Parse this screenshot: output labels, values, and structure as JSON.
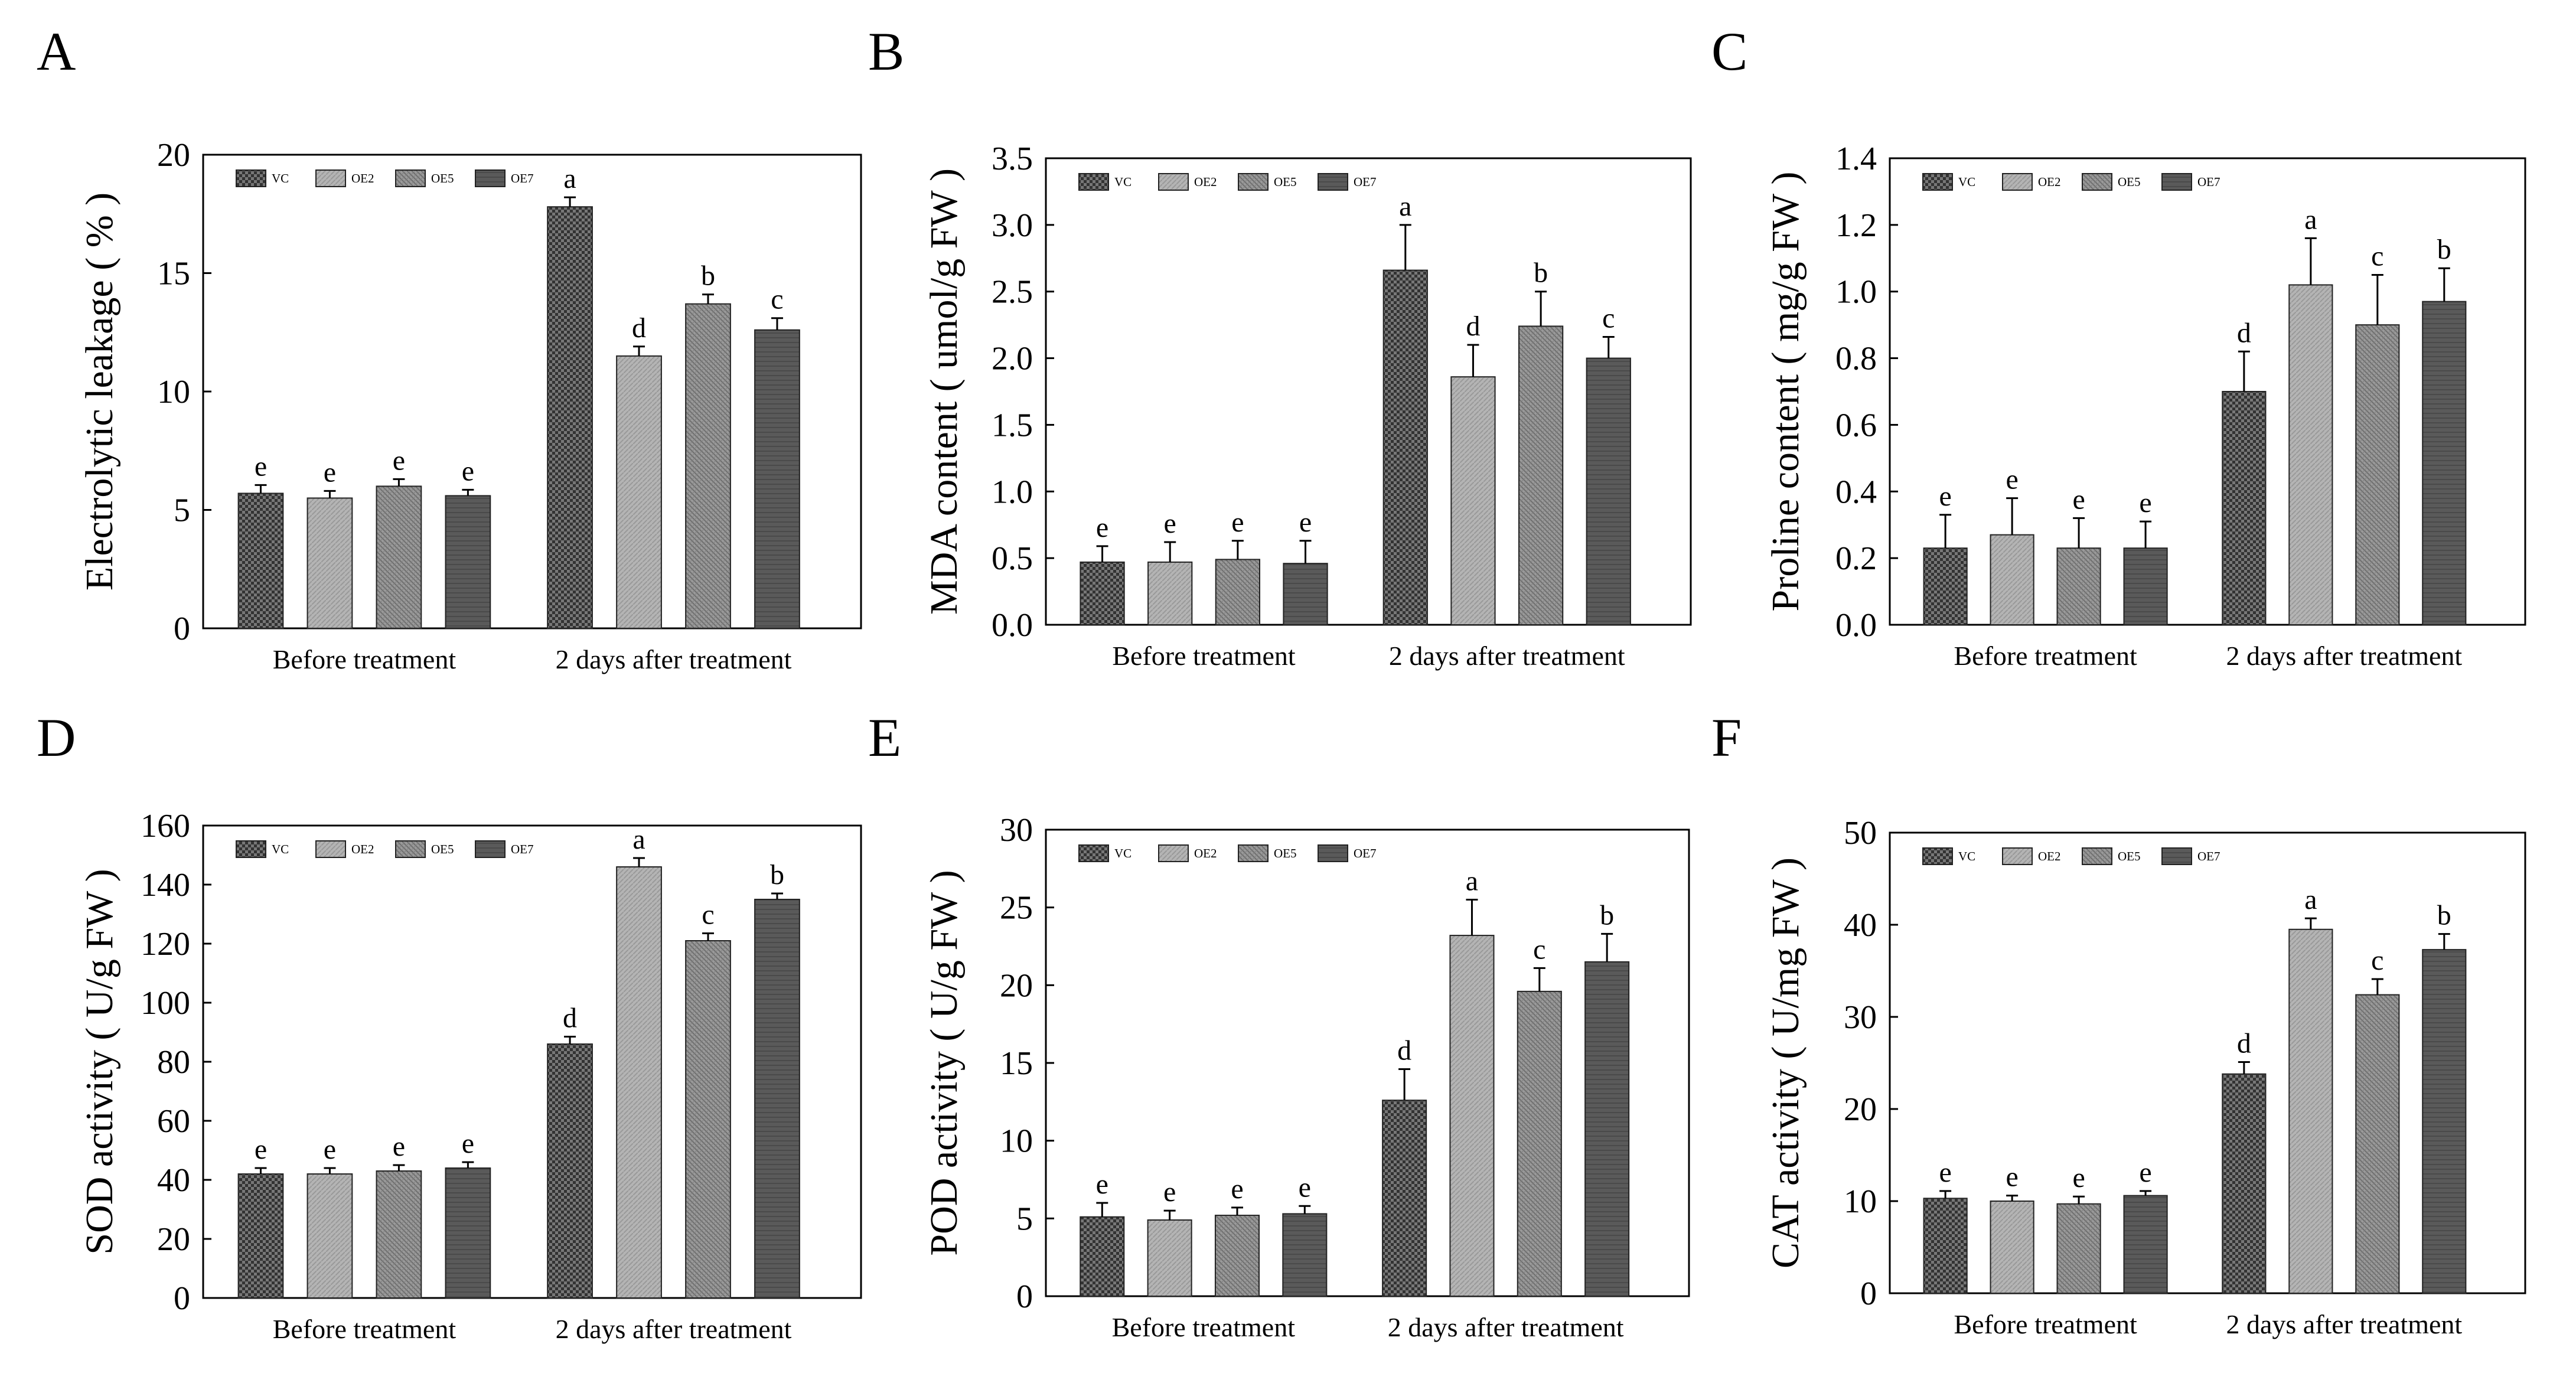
{
  "chart_data": [
    {
      "type": "bar",
      "panel": "A",
      "ylabel": "Electrolytic leakage ( % )",
      "ylim": [
        0,
        20
      ],
      "yticks": [
        0,
        5,
        10,
        15,
        20
      ],
      "categories": [
        "Before treatment",
        "2 days after treatment"
      ],
      "legend": [
        "VC",
        "OE2",
        "OE5",
        "OE7"
      ],
      "legend_position": "top-left",
      "series": [
        {
          "name": "VC",
          "values": [
            5.7,
            17.8
          ],
          "errors": [
            0.35,
            0.4
          ],
          "letters": [
            "e",
            "a"
          ]
        },
        {
          "name": "OE2",
          "values": [
            5.5,
            11.5
          ],
          "errors": [
            0.3,
            0.4
          ],
          "letters": [
            "e",
            "d"
          ]
        },
        {
          "name": "OE5",
          "values": [
            6.0,
            13.7
          ],
          "errors": [
            0.3,
            0.4
          ],
          "letters": [
            "e",
            "b"
          ]
        },
        {
          "name": "OE7",
          "values": [
            5.6,
            12.6
          ],
          "errors": [
            0.25,
            0.5
          ],
          "letters": [
            "e",
            "c"
          ]
        }
      ]
    },
    {
      "type": "bar",
      "panel": "B",
      "ylabel": "MDA content ( umol/g FW )",
      "ylim": [
        0,
        3.5
      ],
      "yticks": [
        "0.0",
        "0.5",
        "1.0",
        "1.5",
        "2.0",
        "2.5",
        "3.0",
        "3.5"
      ],
      "categories": [
        "Before treatment",
        "2 days after treatment"
      ],
      "legend": [
        "VC",
        "OE2",
        "OE5",
        "OE7"
      ],
      "legend_position": "top-left",
      "series": [
        {
          "name": "VC",
          "values": [
            0.47,
            2.66
          ],
          "errors": [
            0.12,
            0.34
          ],
          "letters": [
            "e",
            "a"
          ]
        },
        {
          "name": "OE2",
          "values": [
            0.47,
            1.86
          ],
          "errors": [
            0.15,
            0.24
          ],
          "letters": [
            "e",
            "d"
          ]
        },
        {
          "name": "OE5",
          "values": [
            0.49,
            2.24
          ],
          "errors": [
            0.14,
            0.26
          ],
          "letters": [
            "e",
            "b"
          ]
        },
        {
          "name": "OE7",
          "values": [
            0.46,
            2.0
          ],
          "errors": [
            0.17,
            0.16
          ],
          "letters": [
            "e",
            "c"
          ]
        }
      ]
    },
    {
      "type": "bar",
      "panel": "C",
      "ylabel": "Proline content ( mg/g FW )",
      "ylim": [
        0,
        1.4
      ],
      "yticks": [
        "0.0",
        "0.2",
        "0.4",
        "0.6",
        "0.8",
        "1.0",
        "1.2",
        "1.4"
      ],
      "categories": [
        "Before treatment",
        "2 days after treatment"
      ],
      "legend": [
        "VC",
        "OE2",
        "OE5",
        "OE7"
      ],
      "legend_position": "top-left",
      "series": [
        {
          "name": "VC",
          "values": [
            0.23,
            0.7
          ],
          "errors": [
            0.1,
            0.12
          ],
          "letters": [
            "e",
            "d"
          ]
        },
        {
          "name": "OE2",
          "values": [
            0.27,
            1.02
          ],
          "errors": [
            0.11,
            0.14
          ],
          "letters": [
            "e",
            "a"
          ]
        },
        {
          "name": "OE5",
          "values": [
            0.23,
            0.9
          ],
          "errors": [
            0.09,
            0.15
          ],
          "letters": [
            "e",
            "c"
          ]
        },
        {
          "name": "OE7",
          "values": [
            0.23,
            0.97
          ],
          "errors": [
            0.08,
            0.1
          ],
          "letters": [
            "e",
            "b"
          ]
        }
      ]
    },
    {
      "type": "bar",
      "panel": "D",
      "ylabel": "SOD activity ( U/g FW )",
      "ylim": [
        0,
        160
      ],
      "yticks": [
        0,
        20,
        40,
        60,
        80,
        100,
        120,
        140,
        160
      ],
      "categories": [
        "Before treatment",
        "2 days after treatment"
      ],
      "legend": [
        "VC",
        "OE2",
        "OE5",
        "OE7"
      ],
      "legend_position": "top-left",
      "series": [
        {
          "name": "VC",
          "values": [
            42,
            86
          ],
          "errors": [
            2,
            2.5
          ],
          "letters": [
            "e",
            "d"
          ]
        },
        {
          "name": "OE2",
          "values": [
            42,
            146
          ],
          "errors": [
            2,
            3
          ],
          "letters": [
            "e",
            "a"
          ]
        },
        {
          "name": "OE5",
          "values": [
            43,
            121
          ],
          "errors": [
            2,
            2.5
          ],
          "letters": [
            "e",
            "c"
          ]
        },
        {
          "name": "OE7",
          "values": [
            44,
            135
          ],
          "errors": [
            2,
            2
          ],
          "letters": [
            "e",
            "b"
          ]
        }
      ]
    },
    {
      "type": "bar",
      "panel": "E",
      "ylabel": "POD activity ( U/g FW )",
      "ylim": [
        0,
        30
      ],
      "yticks": [
        0,
        5,
        10,
        15,
        20,
        25,
        30
      ],
      "categories": [
        "Before treatment",
        "2 days after treatment"
      ],
      "legend": [
        "VC",
        "OE2",
        "OE5",
        "OE7"
      ],
      "legend_position": "top-left",
      "series": [
        {
          "name": "VC",
          "values": [
            5.1,
            12.6
          ],
          "errors": [
            0.9,
            2.0
          ],
          "letters": [
            "e",
            "d"
          ]
        },
        {
          "name": "OE2",
          "values": [
            4.9,
            23.2
          ],
          "errors": [
            0.6,
            2.3
          ],
          "letters": [
            "e",
            "a"
          ]
        },
        {
          "name": "OE5",
          "values": [
            5.2,
            19.6
          ],
          "errors": [
            0.5,
            1.5
          ],
          "letters": [
            "e",
            "c"
          ]
        },
        {
          "name": "OE7",
          "values": [
            5.3,
            21.5
          ],
          "errors": [
            0.5,
            1.8
          ],
          "letters": [
            "e",
            "b"
          ]
        }
      ]
    },
    {
      "type": "bar",
      "panel": "F",
      "ylabel": "CAT activity ( U/mg FW )",
      "ylim": [
        0,
        50
      ],
      "yticks": [
        0,
        10,
        20,
        30,
        40,
        50
      ],
      "categories": [
        "Before treatment",
        "2 days after treatment"
      ],
      "legend": [
        "VC",
        "OE2",
        "OE5",
        "OE7"
      ],
      "legend_position": "top-left",
      "series": [
        {
          "name": "VC",
          "values": [
            10.3,
            23.8
          ],
          "errors": [
            0.8,
            1.3
          ],
          "letters": [
            "e",
            "d"
          ]
        },
        {
          "name": "OE2",
          "values": [
            10.0,
            39.5
          ],
          "errors": [
            0.6,
            1.2
          ],
          "letters": [
            "e",
            "a"
          ]
        },
        {
          "name": "OE5",
          "values": [
            9.7,
            32.4
          ],
          "errors": [
            0.8,
            1.7
          ],
          "letters": [
            "e",
            "c"
          ]
        },
        {
          "name": "OE7",
          "values": [
            10.6,
            37.3
          ],
          "errors": [
            0.5,
            1.7
          ],
          "letters": [
            "e",
            "b"
          ]
        }
      ]
    }
  ],
  "colors": {
    "VC": "#5c5c5c",
    "OE2": "#a8a8a8",
    "OE5": "#8e8e8e",
    "OE7": "#555555",
    "axis": "#000000"
  }
}
